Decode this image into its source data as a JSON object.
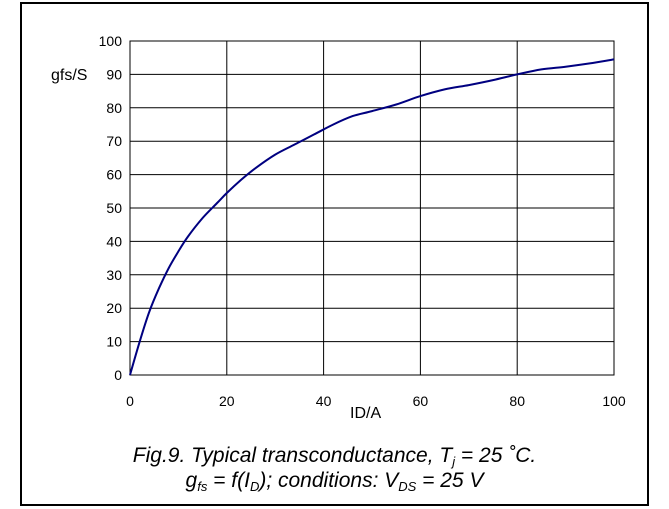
{
  "chart_data": {
    "type": "line",
    "title": "",
    "xlabel": "ID/A",
    "ylabel": "gfs/S",
    "xlim": [
      0,
      100
    ],
    "ylim": [
      0,
      100
    ],
    "xticks": [
      "0",
      "20",
      "40",
      "60",
      "80",
      "100"
    ],
    "yticks": [
      "0",
      "10",
      "20",
      "30",
      "40",
      "50",
      "60",
      "70",
      "80",
      "90",
      "100"
    ],
    "grid": true,
    "legend": "none",
    "series": [
      {
        "color": "#000080",
        "x": [
          0,
          2,
          4,
          6,
          8,
          10,
          12,
          15,
          18,
          20,
          23,
          26,
          30,
          34,
          38,
          42,
          46,
          50,
          55,
          60,
          65,
          70,
          75,
          80,
          85,
          90,
          95,
          100
        ],
        "y": [
          0,
          10,
          19,
          26,
          32,
          37,
          41.5,
          47,
          51.5,
          54.5,
          58.5,
          62,
          66,
          69,
          72,
          75,
          77.5,
          79,
          81,
          83.5,
          85.5,
          86.8,
          88.3,
          90,
          91.5,
          92.3,
          93.3,
          94.5
        ]
      }
    ],
    "caption": {
      "line1_prefix": "Fig.9.   Typical transconductance, T",
      "line1_sub": "j",
      "line1_suffix": " = 25 ˚C.",
      "line2_g": "g",
      "line2_g_sub": "fs",
      "line2_mid": " = f(I",
      "line2_i_sub": "D",
      "line2_cond": "); conditions: V",
      "line2_v_sub": "DS",
      "line2_end": " = 25 V"
    }
  }
}
